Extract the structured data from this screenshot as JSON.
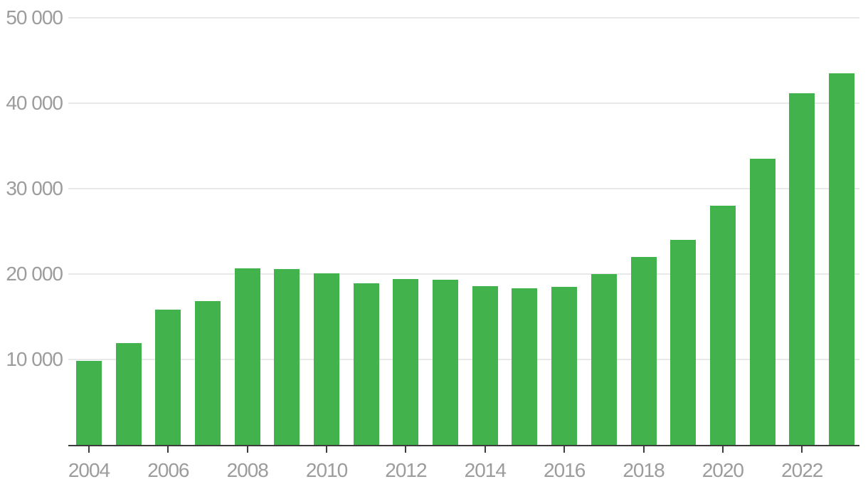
{
  "chart_data": {
    "type": "bar",
    "title": "",
    "xlabel": "",
    "ylabel": "",
    "categories": [
      "2004",
      "2005",
      "2006",
      "2007",
      "2008",
      "2009",
      "2010",
      "2011",
      "2012",
      "2013",
      "2014",
      "2015",
      "2016",
      "2017",
      "2018",
      "2019",
      "2020",
      "2021",
      "2022",
      "2023"
    ],
    "values": [
      9800,
      11900,
      15800,
      16800,
      20700,
      20600,
      20100,
      18900,
      19400,
      19300,
      18600,
      18300,
      18500,
      20000,
      22000,
      24000,
      28000,
      33500,
      41200,
      43500
    ],
    "ylim": [
      0,
      50000
    ],
    "grid": true,
    "legend": "none",
    "y_ticks": [
      {
        "value": 10000,
        "label": "10 000"
      },
      {
        "value": 20000,
        "label": "20 000"
      },
      {
        "value": 30000,
        "label": "30 000"
      },
      {
        "value": 40000,
        "label": "40 000"
      },
      {
        "value": 50000,
        "label": "50 000"
      }
    ],
    "x_tick_years": [
      "2004",
      "2006",
      "2008",
      "2010",
      "2012",
      "2014",
      "2016",
      "2018",
      "2020",
      "2022"
    ],
    "colors": {
      "bar": "#42B24D",
      "grid": "#e8e8e8",
      "axis": "#3b3b3b",
      "tick_label": "#9c9c9c"
    }
  }
}
